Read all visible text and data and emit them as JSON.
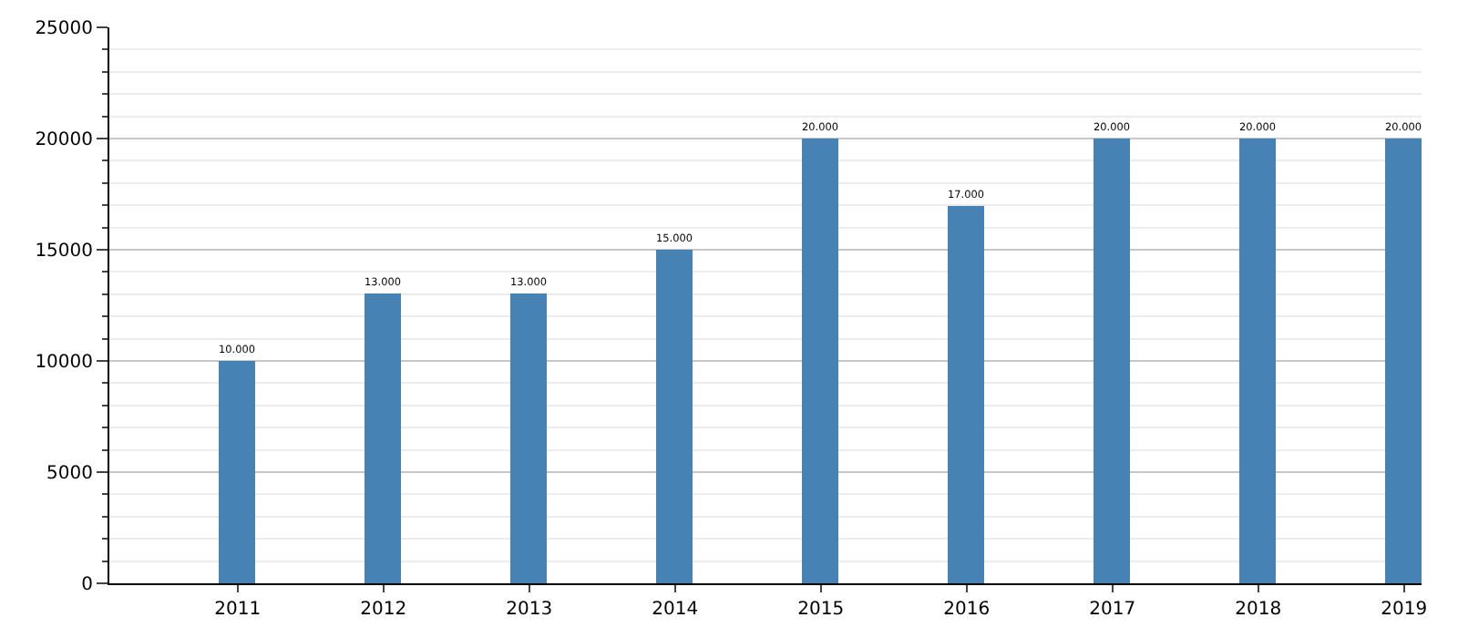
{
  "chart_data": {
    "type": "bar",
    "x": [
      2011,
      2012,
      2013,
      2014,
      2015,
      2016,
      2017,
      2018,
      2019
    ],
    "values": [
      10000,
      13000,
      13000,
      15000,
      20000,
      17000,
      20000,
      20000,
      20000
    ],
    "value_labels": [
      "10.000",
      "13.000",
      "13.000",
      "15.000",
      "20.000",
      "17.000",
      "20.000",
      "20.000",
      "20.000"
    ],
    "color": "#4682b4",
    "xlim": [
      2010.12,
      2019.12
    ],
    "xticks": [
      2011,
      2012,
      2013,
      2014,
      2015,
      2016,
      2017,
      2018,
      2019
    ],
    "ylim": [
      0,
      25000
    ],
    "yticks": [
      0,
      {
        "value": 1000,
        "label": null
      },
      {
        "value": 2000,
        "label": null
      },
      {
        "value": 3000,
        "label": null
      },
      {
        "value": 4000,
        "label": null
      },
      5000,
      {
        "value": 6000,
        "label": null
      },
      {
        "value": 7000,
        "label": null
      },
      {
        "value": 8000,
        "label": null
      },
      {
        "value": 9000,
        "label": null
      },
      10000,
      {
        "value": 11000,
        "label": null
      },
      {
        "value": 12000,
        "label": null
      },
      {
        "value": 13000,
        "label": null
      },
      {
        "value": 14000,
        "label": null
      },
      15000,
      {
        "value": 16000,
        "label": null
      },
      {
        "value": 17000,
        "label": null
      },
      {
        "value": 18000,
        "label": null
      },
      {
        "value": 19000,
        "label": null
      },
      20000,
      {
        "value": 21000,
        "label": null
      },
      {
        "value": 22000,
        "label": null
      },
      {
        "value": 23000,
        "label": null
      },
      {
        "value": 24000,
        "label": null
      },
      25000
    ],
    "grid": "y"
  }
}
